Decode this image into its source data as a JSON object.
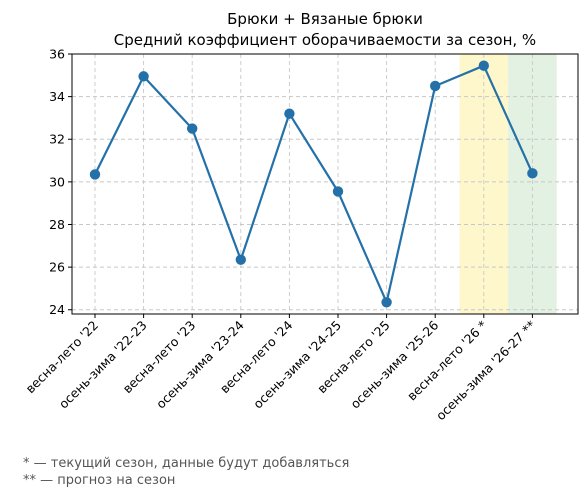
{
  "chart_data": {
    "type": "line",
    "title_lines": [
      "Брюки + Вязаные брюки",
      "Средний коэффициент оборачиваемости за сезон, %"
    ],
    "categories": [
      "весна-лето '22",
      "осень-зима '22-23",
      "весна-лето '23",
      "осень-зима '23-24",
      "весна-лето '24",
      "осень-зима '24-25",
      "весна-лето '25",
      "осень-зима '25-26",
      "весна-лето '26 *",
      "осень-зима '26-27 **"
    ],
    "series": [
      {
        "values": [
          30.35,
          34.95,
          32.5,
          26.35,
          33.2,
          29.55,
          24.35,
          34.5,
          35.45,
          30.4
        ],
        "color": "#2471a9"
      }
    ],
    "ylim": [
      23.8,
      36
    ],
    "yticks": [
      24,
      26,
      28,
      30,
      32,
      34,
      36
    ],
    "grid": true,
    "highlights": [
      {
        "category_index": 8,
        "color": "#fff7cc"
      },
      {
        "category_index": 9,
        "color": "#e3f1e2"
      }
    ]
  },
  "footnotes": {
    "current": "* — текущий сезон, данные будут добавляться",
    "forecast": "** — прогноз на сезон"
  }
}
